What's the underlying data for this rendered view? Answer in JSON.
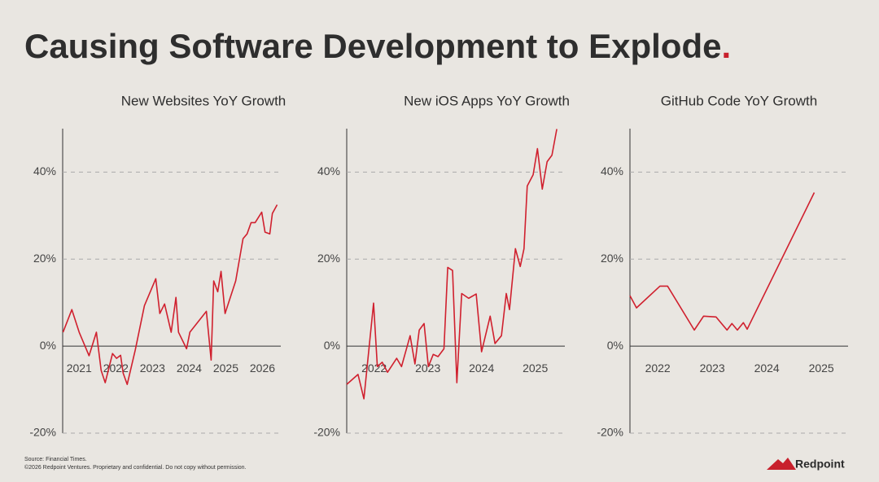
{
  "title": "Causing Software Development to Explode",
  "title_period": ".",
  "source": "Source: Financial Times.",
  "copyright": "©2026 Redpoint Ventures. Proprietary and confidential. Do not copy without permission.",
  "logo": "Redpoint",
  "chart_data": [
    {
      "type": "line",
      "title": "New Websites YoY Growth",
      "color": "#d0202e",
      "grid": true,
      "x": [
        2020.56,
        2020.8,
        2021.0,
        2021.27,
        2021.47,
        2021.6,
        2021.71,
        2021.91,
        2022.02,
        2022.13,
        2022.2,
        2022.31,
        2022.53,
        2022.78,
        2023.09,
        2023.2,
        2023.33,
        2023.51,
        2023.64,
        2023.71,
        2023.93,
        2024.02,
        2024.47,
        2024.6,
        2024.67,
        2024.78,
        2024.87,
        2024.98,
        2025.27,
        2025.47,
        2025.58,
        2025.69,
        2025.8,
        2025.98,
        2026.07,
        2026.2,
        2026.27,
        2026.4
      ],
      "values": [
        3.2,
        8.4,
        3.2,
        -2.2,
        3.2,
        -5.6,
        -8.4,
        -1.7,
        -2.8,
        -2.1,
        -6.2,
        -8.8,
        -0.9,
        9.3,
        15.5,
        7.5,
        9.7,
        3.2,
        11.2,
        3.2,
        -0.6,
        3.2,
        8.0,
        -3.2,
        15.0,
        12.5,
        17.2,
        7.5,
        15.0,
        24.7,
        25.8,
        28.4,
        28.4,
        30.8,
        26.2,
        25.8,
        30.5,
        32.5
      ],
      "xlim": [
        2020.55,
        2026.5
      ],
      "xticks": [
        2021,
        2022,
        2023,
        2024,
        2025,
        2026
      ],
      "ylim": [
        -20,
        50
      ],
      "yticks": [
        {
          "value": -20,
          "label": "-20%"
        },
        {
          "value": 0,
          "label": "0%"
        },
        {
          "value": 20,
          "label": "20%"
        },
        {
          "value": 40,
          "label": "40%"
        }
      ]
    },
    {
      "type": "line",
      "title": "New iOS Apps YoY Growth",
      "color": "#d0202e",
      "grid": true,
      "x": [
        2021.49,
        2021.7,
        2021.81,
        2021.99,
        2022.06,
        2022.15,
        2022.25,
        2022.42,
        2022.51,
        2022.67,
        2022.76,
        2022.84,
        2022.93,
        2023.01,
        2023.1,
        2023.19,
        2023.3,
        2023.37,
        2023.46,
        2023.54,
        2023.63,
        2023.76,
        2023.9,
        2024.0,
        2024.16,
        2024.25,
        2024.37,
        2024.46,
        2024.52,
        2024.63,
        2024.72,
        2024.79,
        2024.85,
        2024.96,
        2025.04,
        2025.13,
        2025.22,
        2025.31,
        2025.4
      ],
      "values": [
        -8.8,
        -6.5,
        -12.1,
        9.9,
        -4.7,
        -3.7,
        -6.0,
        -2.8,
        -4.7,
        2.4,
        -4.1,
        3.7,
        5.2,
        -4.7,
        -1.9,
        -2.4,
        -0.6,
        18.1,
        17.4,
        -8.4,
        12.1,
        11.0,
        12.0,
        -1.3,
        6.9,
        0.6,
        2.4,
        12.1,
        8.4,
        22.4,
        18.3,
        22.4,
        36.8,
        39.4,
        45.4,
        36.1,
        42.4,
        43.9,
        49.9
      ],
      "xlim": [
        2021.49,
        2025.55
      ],
      "xticks": [
        2022,
        2023,
        2024,
        2025
      ],
      "ylim": [
        -20,
        50
      ],
      "yticks": [
        {
          "value": -20,
          "label": "-20%"
        },
        {
          "value": 0,
          "label": "0%"
        },
        {
          "value": 20,
          "label": "20%"
        },
        {
          "value": 40,
          "label": "40%"
        }
      ]
    },
    {
      "type": "line",
      "title": "GitHub Code YoY Growth",
      "color": "#d0202e",
      "grid": true,
      "x": [
        2021.49,
        2021.61,
        2022.04,
        2022.18,
        2022.67,
        2022.84,
        2023.07,
        2023.27,
        2023.36,
        2023.46,
        2023.57,
        2023.64,
        2024.87
      ],
      "values": [
        11.6,
        8.8,
        13.8,
        13.8,
        3.7,
        6.9,
        6.7,
        3.7,
        5.2,
        3.7,
        5.4,
        3.9,
        35.3
      ],
      "xlim": [
        2021.49,
        2025.49
      ],
      "xticks": [
        2022,
        2023,
        2024,
        2025
      ],
      "ylim": [
        -20,
        50
      ],
      "yticks": [
        {
          "value": -20,
          "label": "-20%"
        },
        {
          "value": 0,
          "label": "0%"
        },
        {
          "value": 20,
          "label": "20%"
        },
        {
          "value": 40,
          "label": "40%"
        }
      ]
    }
  ]
}
